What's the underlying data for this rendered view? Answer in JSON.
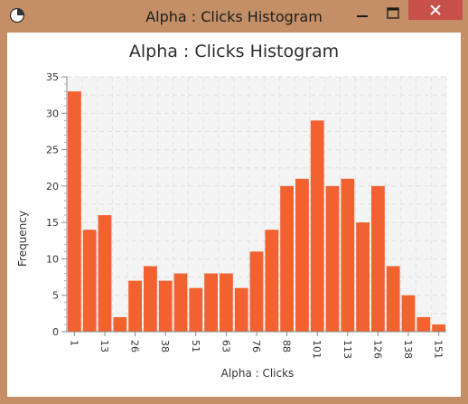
{
  "window": {
    "title": "Alpha : Clicks Histogram",
    "minimize_icon": "minimize-icon",
    "maximize_icon": "maximize-icon",
    "close_icon": "close-icon",
    "app_icon": "chart-app-icon"
  },
  "colors": {
    "bar": "#f26130",
    "plot_bg": "#f4f4f4",
    "frame": "#c48f66",
    "close_button": "#c7504b"
  },
  "chart_data": {
    "type": "bar",
    "title": "Alpha : Clicks Histogram",
    "xlabel": "Alpha : Clicks",
    "ylabel": "Frequency",
    "ylim": [
      0,
      35
    ],
    "yticks": [
      0,
      5,
      10,
      15,
      20,
      25,
      30,
      35
    ],
    "xtick_labels": [
      "1",
      "13",
      "26",
      "38",
      "51",
      "63",
      "76",
      "88",
      "101",
      "113",
      "126",
      "138",
      "151"
    ],
    "grid": true,
    "values": [
      33,
      14,
      16,
      2,
      7,
      9,
      7,
      8,
      6,
      8,
      8,
      6,
      11,
      14,
      20,
      21,
      29,
      20,
      21,
      15,
      20,
      9,
      5,
      2,
      1
    ]
  }
}
